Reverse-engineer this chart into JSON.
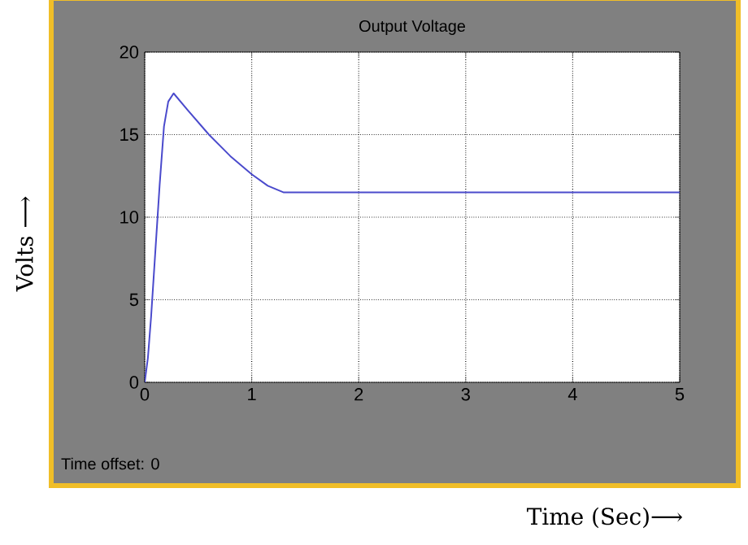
{
  "chart_data": {
    "type": "line",
    "title": "Output Voltage",
    "xlabel": "Time (Sec)⟶",
    "ylabel": "Volts ⟶",
    "annotations": [
      "Time offset:  0"
    ],
    "xlim": [
      0,
      5
    ],
    "ylim": [
      0,
      20
    ],
    "xticks": [
      0,
      1,
      2,
      3,
      4,
      5
    ],
    "yticks": [
      0,
      5,
      10,
      15,
      20
    ],
    "grid": true,
    "x": [
      0,
      0.03,
      0.06,
      0.1,
      0.14,
      0.18,
      0.22,
      0.27,
      0.4,
      0.6,
      0.8,
      1.0,
      1.15,
      1.3,
      1.5,
      2,
      3,
      4,
      5
    ],
    "series": [
      {
        "color": "#4a4acc",
        "values": [
          0,
          1.5,
          4,
          8,
          12,
          15.5,
          17,
          17.5,
          16.5,
          15,
          13.7,
          12.6,
          11.9,
          11.5,
          11.5,
          11.5,
          11.5,
          11.5,
          11.5
        ]
      }
    ]
  }
}
